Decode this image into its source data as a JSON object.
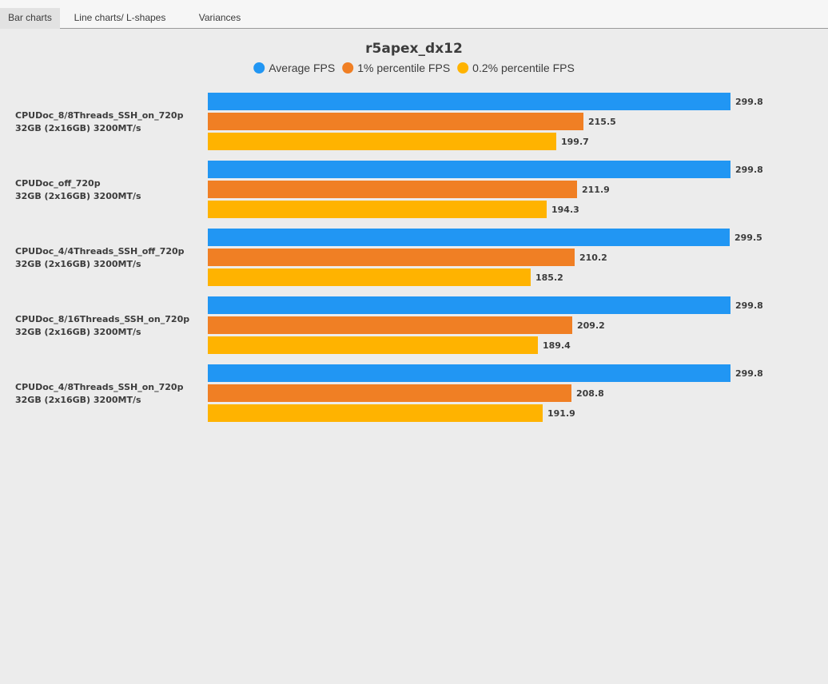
{
  "tabs": [
    {
      "label": "Bar charts",
      "active": true
    },
    {
      "label": "Line charts/ L-shapes",
      "active": false
    },
    {
      "label": "Variances",
      "active": false
    }
  ],
  "colors": {
    "average": "#2196f3",
    "p1": "#f07f24",
    "p02": "#ffb300",
    "text": "#3c3c3c"
  },
  "chart_data": {
    "type": "bar",
    "orientation": "horizontal",
    "title": "r5apex_dx12",
    "legend_position": "top-center",
    "series": [
      {
        "name": "Average FPS",
        "values": [
          299.8,
          299.8,
          299.5,
          299.8,
          299.8
        ]
      },
      {
        "name": "1% percentile FPS",
        "values": [
          215.5,
          211.9,
          210.2,
          209.2,
          208.8
        ]
      },
      {
        "name": "0.2% percentile FPS",
        "values": [
          199.7,
          194.3,
          185.2,
          189.4,
          191.9
        ]
      }
    ],
    "categories": [
      {
        "line1": "CPUDoc_8/8Threads_SSH_on_720p",
        "line2": "32GB (2x16GB) 3200MT/s"
      },
      {
        "line1": "CPUDoc_off_720p",
        "line2": "32GB (2x16GB) 3200MT/s"
      },
      {
        "line1": "CPUDoc_4/4Threads_SSH_off_720p",
        "line2": "32GB (2x16GB) 3200MT/s"
      },
      {
        "line1": "CPUDoc_8/16Threads_SSH_on_720p",
        "line2": "32GB (2x16GB) 3200MT/s"
      },
      {
        "line1": "CPUDoc_4/8Threads_SSH_on_720p",
        "line2": "32GB (2x16GB) 3200MT/s"
      }
    ],
    "xlim": [
      0,
      299.8
    ],
    "grid": false,
    "xlabel": "",
    "ylabel": ""
  }
}
